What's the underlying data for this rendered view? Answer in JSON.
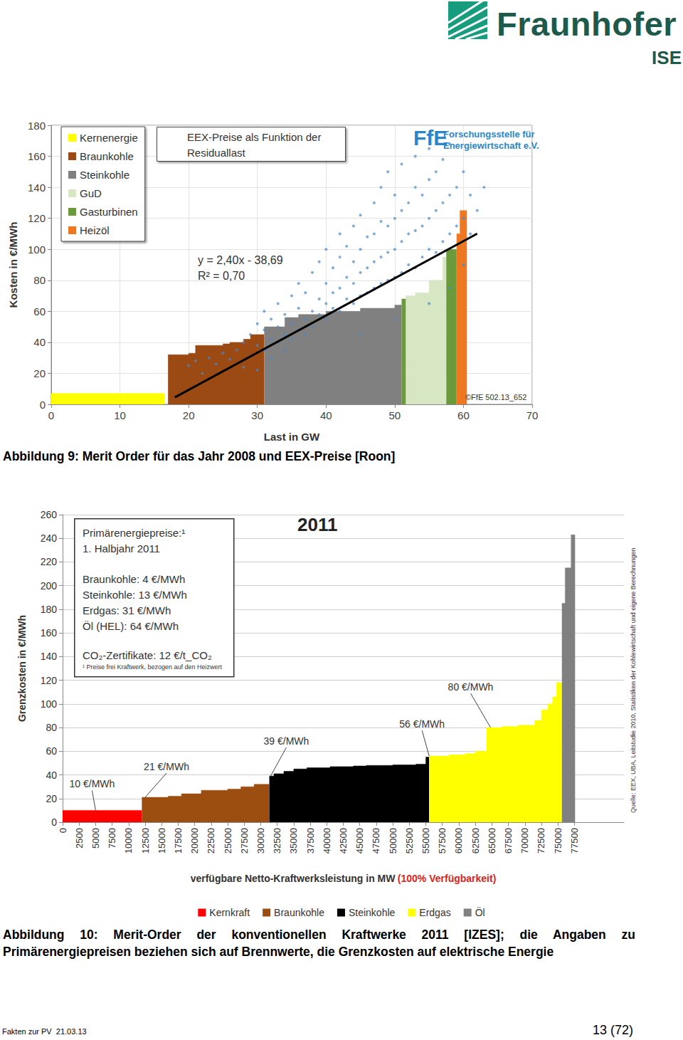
{
  "header": {
    "logo": "Fraunhofer",
    "sub": "ISE"
  },
  "chart_data": [
    {
      "type": "area",
      "caption": "Abbildung 9: Merit Order für das Jahr 2008 und EEX-Preise [Roon]",
      "title": "EEX-Preise als Funktion der Residuallast",
      "xlabel": "Last in GW",
      "ylabel": "Kosten in €/MWh",
      "xlim": [
        0,
        70
      ],
      "xticks": [
        0,
        10,
        20,
        30,
        40,
        50,
        60,
        70
      ],
      "ylim": [
        0,
        180
      ],
      "yticks": [
        0,
        20,
        40,
        60,
        80,
        100,
        120,
        140,
        160,
        180
      ],
      "grid": true,
      "legend": "upper left",
      "equation": [
        "y = 2,40x - 38,69",
        "R² = 0,70"
      ],
      "logo": {
        "short": "FfE",
        "name": [
          "Forschungsstelle für",
          "Energiewirtschaft e.V."
        ]
      },
      "source": "©FfE 502.13_652",
      "series": [
        {
          "name": "Kernenergie",
          "type": "step_area",
          "color": "#ffff00",
          "x": [
            0,
            16.5
          ],
          "values": [
            7,
            7
          ]
        },
        {
          "name": "Braunkohle",
          "type": "step_area",
          "color": "#9a4a12",
          "x": [
            17,
            20,
            21,
            25,
            26,
            28,
            29,
            31
          ],
          "values": [
            32,
            33,
            38,
            39,
            40,
            42,
            45,
            45
          ]
        },
        {
          "name": "Steinkohle",
          "type": "step_area",
          "color": "#808080",
          "x": [
            31,
            34,
            36,
            40,
            45,
            50,
            51
          ],
          "values": [
            50,
            56,
            58,
            60,
            62,
            64,
            64
          ]
        },
        {
          "name": "GuD",
          "type": "step_area",
          "color": "#d7e6c3",
          "x": [
            51.6,
            53,
            55,
            57,
            57.5
          ],
          "values": [
            70,
            72,
            80,
            95,
            95
          ]
        },
        {
          "name": "Gasturbinen",
          "type": "step_area",
          "color": "#6a9a3a",
          "x": [
            51,
            51.6,
            51.6,
            57.5,
            59
          ],
          "values": [
            68,
            68,
            null,
            100,
            100
          ]
        },
        {
          "name": "Heizöl",
          "type": "step_area",
          "color": "#ee7722",
          "x": [
            59,
            59.5,
            60.5
          ],
          "values": [
            110,
            125,
            125
          ]
        },
        {
          "type": "scatter",
          "color": "#4a86c8",
          "points": [
            [
              20,
              25
            ],
            [
              21,
              28
            ],
            [
              22,
              20
            ],
            [
              23,
              30
            ],
            [
              24,
              26
            ],
            [
              25,
              33
            ],
            [
              26,
              29
            ],
            [
              27,
              35
            ],
            [
              28,
              24
            ],
            [
              28,
              40
            ],
            [
              29,
              31
            ],
            [
              29,
              45
            ],
            [
              30,
              22
            ],
            [
              30,
              38
            ],
            [
              30,
              52
            ],
            [
              31,
              35
            ],
            [
              31,
              48
            ],
            [
              31,
              60
            ],
            [
              32,
              42
            ],
            [
              32,
              55
            ],
            [
              32,
              30
            ],
            [
              33,
              40
            ],
            [
              33,
              50
            ],
            [
              33,
              65
            ],
            [
              34,
              45
            ],
            [
              34,
              58
            ],
            [
              34,
              35
            ],
            [
              35,
              52
            ],
            [
              35,
              70
            ],
            [
              35,
              42
            ],
            [
              36,
              48
            ],
            [
              36,
              62
            ],
            [
              36,
              78
            ],
            [
              37,
              55
            ],
            [
              37,
              45
            ],
            [
              37,
              72
            ],
            [
              38,
              60
            ],
            [
              38,
              50
            ],
            [
              38,
              85
            ],
            [
              39,
              58
            ],
            [
              39,
              68
            ],
            [
              39,
              92
            ],
            [
              40,
              55
            ],
            [
              40,
              65
            ],
            [
              40,
              78
            ],
            [
              40,
              100
            ],
            [
              41,
              62
            ],
            [
              41,
              72
            ],
            [
              41,
              88
            ],
            [
              42,
              60
            ],
            [
              42,
              75
            ],
            [
              42,
              95
            ],
            [
              42,
              110
            ],
            [
              43,
              68
            ],
            [
              43,
              82
            ],
            [
              43,
              102
            ],
            [
              44,
              65
            ],
            [
              44,
              78
            ],
            [
              44,
              92
            ],
            [
              44,
              115
            ],
            [
              45,
              70
            ],
            [
              45,
              85
            ],
            [
              45,
              100
            ],
            [
              45,
              122
            ],
            [
              46,
              72
            ],
            [
              46,
              88
            ],
            [
              46,
              108
            ],
            [
              47,
              75
            ],
            [
              47,
              92
            ],
            [
              47,
              110
            ],
            [
              47,
              130
            ],
            [
              48,
              78
            ],
            [
              48,
              95
            ],
            [
              48,
              118
            ],
            [
              48,
              140
            ],
            [
              49,
              80
            ],
            [
              49,
              98
            ],
            [
              49,
              115
            ],
            [
              49,
              150
            ],
            [
              50,
              82
            ],
            [
              50,
              100
            ],
            [
              50,
              120
            ],
            [
              50,
              135
            ],
            [
              51,
              85
            ],
            [
              51,
              105
            ],
            [
              51,
              125
            ],
            [
              51,
              155
            ],
            [
              52,
              90
            ],
            [
              52,
              110
            ],
            [
              52,
              130
            ],
            [
              53,
              88
            ],
            [
              53,
              112
            ],
            [
              53,
              140
            ],
            [
              53,
              160
            ],
            [
              54,
              95
            ],
            [
              54,
              115
            ],
            [
              54,
              135
            ],
            [
              55,
              100
            ],
            [
              55,
              120
            ],
            [
              55,
              145
            ],
            [
              55,
              165
            ],
            [
              56,
              98
            ],
            [
              56,
              125
            ],
            [
              56,
              150
            ],
            [
              57,
              105
            ],
            [
              57,
              130
            ],
            [
              57,
              158
            ],
            [
              58,
              110
            ],
            [
              58,
              135
            ],
            [
              58,
              168
            ],
            [
              59,
              115
            ],
            [
              59,
              140
            ],
            [
              60,
              120
            ],
            [
              60,
              150
            ],
            [
              61,
              110
            ],
            [
              61,
              135
            ],
            [
              62,
              125
            ],
            [
              63,
              140
            ],
            [
              45,
              45
            ],
            [
              50,
              55
            ],
            [
              55,
              65
            ],
            [
              58,
              75
            ],
            [
              60,
              90
            ]
          ]
        },
        {
          "type": "line",
          "color": "#000000",
          "x": [
            18,
            62
          ],
          "values": [
            4.51,
            110.11
          ]
        }
      ]
    },
    {
      "type": "area",
      "caption": "Abbildung 10: Merit-Order der konventionellen Kraftwerke 2011 [IZES]; die Angaben zu Primärenergiepreisen beziehen sich auf Brennwerte, die Grenzkosten auf elektrische Energie",
      "title": "2011",
      "xlabel": "verfügbare Netto-Kraftwerksleistung in MW",
      "xlabel_note": "(100% Verfügbarkeit)",
      "ylabel": "Grenzkosten in €/MWh",
      "xlim": [
        0,
        85000
      ],
      "xticks": [
        0,
        2500,
        5000,
        7500,
        10000,
        12500,
        15000,
        17500,
        20000,
        22500,
        25000,
        27500,
        30000,
        32500,
        35000,
        37500,
        40000,
        42500,
        45000,
        47500,
        50000,
        52500,
        55000,
        57500,
        60000,
        62500,
        65000,
        67500,
        70000,
        72500,
        75000,
        77500
      ],
      "ylim": [
        0,
        260
      ],
      "yticks": [
        0,
        20,
        40,
        60,
        80,
        100,
        120,
        140,
        160,
        180,
        200,
        220,
        240,
        260
      ],
      "grid": true,
      "legend": "bottom",
      "info_box": {
        "heading": [
          "Primärenergiepreise:¹",
          "1. Halbjahr 2011"
        ],
        "prices": [
          "Braunkohle: 4 €/MWh",
          "Steinkohle: 13 €/MWh",
          "Erdgas: 31 €/MWh",
          "Öl (HEL): 64 €/MWh"
        ],
        "co2": "CO₂-Zertifikate: 12 €/t_CO₂",
        "footnote": "¹ Preise frei Kraftwerk, bezogen auf den Heizwert"
      },
      "source": "Quelle: EEX, UBA, Leitstudie 2010, Statistiken der Kohlewirtschaft und eigene Berechnungen",
      "annotations": [
        {
          "text": "10 €/MWh",
          "x": 5000,
          "y": 10
        },
        {
          "text": "21 €/MWh",
          "x": 12500,
          "y": 21
        },
        {
          "text": "39 €/MWh",
          "x": 31500,
          "y": 39
        },
        {
          "text": "56 €/MWh",
          "x": 55500,
          "y": 56
        },
        {
          "text": "80 €/MWh",
          "x": 64800,
          "y": 80
        }
      ],
      "series": [
        {
          "name": "Kernkraft",
          "type": "step_area",
          "color": "#ff0000",
          "x": [
            0,
            12000
          ],
          "values": [
            10,
            10
          ]
        },
        {
          "name": "Braunkohle",
          "type": "step_area",
          "color": "#9c4e10",
          "x": [
            12000,
            16000,
            18000,
            21000,
            25000,
            27000,
            29000,
            31300
          ],
          "values": [
            21,
            22,
            24,
            27,
            28,
            30,
            32,
            32
          ]
        },
        {
          "name": "Steinkohle",
          "type": "step_area",
          "color": "#000000",
          "x": [
            31300,
            32000,
            33500,
            35000,
            37000,
            40500,
            44000,
            46000,
            50000,
            53500,
            55000,
            55500
          ],
          "values": [
            39,
            41,
            43,
            45,
            46,
            47,
            47.5,
            48,
            48.5,
            49,
            55,
            55
          ]
        },
        {
          "name": "Erdgas",
          "type": "step_area",
          "color": "#ffff00",
          "x": [
            55500,
            58500,
            61000,
            62500,
            64200,
            66500,
            69000,
            71500,
            72500,
            73500,
            74200,
            74800,
            75600
          ],
          "values": [
            56,
            57,
            58,
            60,
            80,
            81,
            82,
            86,
            95,
            100,
            106,
            118,
            118
          ]
        },
        {
          "name": "Öl",
          "type": "step_area",
          "color": "#808080",
          "x": [
            75600,
            76100,
            77000,
            77600
          ],
          "values": [
            185,
            215,
            243,
            243
          ]
        }
      ]
    }
  ],
  "footer": {
    "left": "Fakten zur PV  21.03.13",
    "right": "13 (72)"
  }
}
